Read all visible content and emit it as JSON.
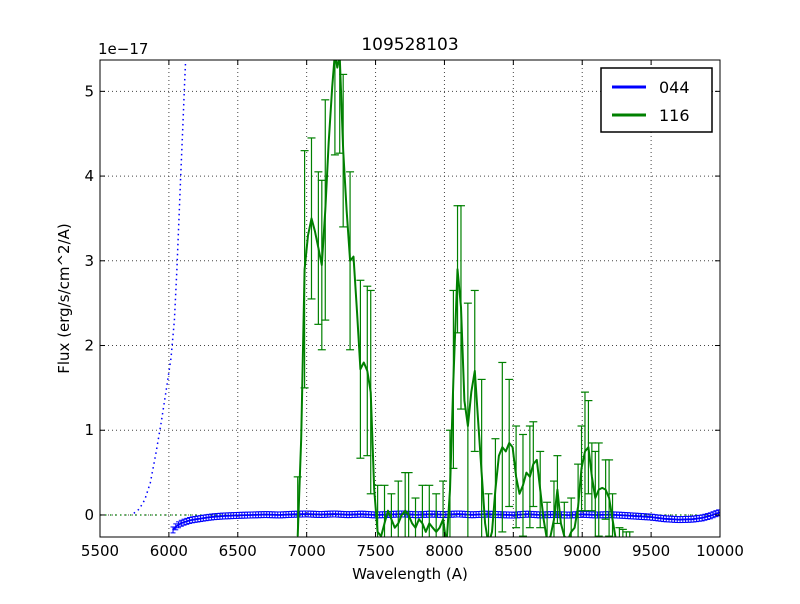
{
  "figure": {
    "title": "109528103",
    "offset_label": "1e−17",
    "xlabel": "Wavelength (A)",
    "ylabel": "Flux (erg/s/cm^2/A)",
    "legend": [
      {
        "label": "044",
        "color": "#0000ff"
      },
      {
        "label": "116",
        "color": "#008000"
      }
    ]
  },
  "chart_data": {
    "type": "line",
    "title": "109528103",
    "xlabel": "Wavelength (A)",
    "ylabel": "Flux (erg/s/cm^2/A)",
    "y_offset_factor": "1e−17",
    "y_unit": "erg/s/cm^2/A",
    "xlim": [
      5500,
      10000
    ],
    "ylim": [
      -0.26,
      5.37
    ],
    "xticks": [
      5500,
      6000,
      6500,
      7000,
      7500,
      8000,
      8500,
      9000,
      9500,
      10000
    ],
    "yticks": [
      0,
      1,
      2,
      3,
      4,
      5
    ],
    "grid": true,
    "grid_style": "dotted",
    "legend_position": "upper right",
    "series": [
      {
        "name": "zero-level-dotted",
        "legend": null,
        "color": "#008000",
        "style": "dotted",
        "width": 1.2,
        "points": [
          [
            5500,
            0
          ],
          [
            10000,
            0
          ]
        ]
      },
      {
        "name": "044-noise-dotted",
        "legend": null,
        "color": "#0000ff",
        "style": "dotted",
        "width": 1.5,
        "points": [
          [
            5745,
            0.02
          ],
          [
            5785,
            0.07
          ],
          [
            5825,
            0.18
          ],
          [
            5865,
            0.38
          ],
          [
            5905,
            0.72
          ],
          [
            5945,
            1.1
          ],
          [
            5985,
            1.52
          ],
          [
            6015,
            1.85
          ],
          [
            6040,
            2.3
          ],
          [
            6058,
            2.9
          ],
          [
            6072,
            3.45
          ],
          [
            6086,
            4.0
          ],
          [
            6100,
            4.55
          ],
          [
            6114,
            5.1
          ],
          [
            6128,
            5.6
          ]
        ]
      },
      {
        "name": "044",
        "legend": "044",
        "color": "#0000ff",
        "style": "solid",
        "width": 1.8,
        "errorband": {
          "start": 6030,
          "end": 10000,
          "step": 20,
          "err": 0.035,
          "capw": 5
        },
        "points": [
          [
            6028,
            -0.18
          ],
          [
            6050,
            -0.14
          ],
          [
            6075,
            -0.11
          ],
          [
            6100,
            -0.09
          ],
          [
            6130,
            -0.075
          ],
          [
            6160,
            -0.06
          ],
          [
            6200,
            -0.05
          ],
          [
            6240,
            -0.04
          ],
          [
            6280,
            -0.03
          ],
          [
            6330,
            -0.02
          ],
          [
            6400,
            -0.012
          ],
          [
            6500,
            -0.005
          ],
          [
            6600,
            0.0
          ],
          [
            6700,
            0.005
          ],
          [
            6800,
            0.0
          ],
          [
            6900,
            0.008
          ],
          [
            7000,
            0.012
          ],
          [
            7100,
            0.005
          ],
          [
            7200,
            0.012
          ],
          [
            7300,
            0.003
          ],
          [
            7400,
            0.01
          ],
          [
            7500,
            0.0
          ],
          [
            7600,
            0.006
          ],
          [
            7700,
            0.012
          ],
          [
            7800,
            0.002
          ],
          [
            7900,
            0.01
          ],
          [
            8000,
            0.004
          ],
          [
            8100,
            0.012
          ],
          [
            8200,
            0.002
          ],
          [
            8300,
            0.01
          ],
          [
            8400,
            0.004
          ],
          [
            8500,
            -0.002
          ],
          [
            8600,
            0.01
          ],
          [
            8700,
            0.0
          ],
          [
            8800,
            0.006
          ],
          [
            8900,
            -0.002
          ],
          [
            9000,
            0.008
          ],
          [
            9100,
            0.0
          ],
          [
            9200,
            0.004
          ],
          [
            9300,
            -0.005
          ],
          [
            9400,
            -0.015
          ],
          [
            9500,
            -0.025
          ],
          [
            9600,
            -0.045
          ],
          [
            9700,
            -0.055
          ],
          [
            9800,
            -0.05
          ],
          [
            9870,
            -0.035
          ],
          [
            9930,
            -0.01
          ],
          [
            9970,
            0.015
          ],
          [
            10000,
            0.03
          ]
        ]
      },
      {
        "name": "116",
        "legend": "116",
        "color": "#008000",
        "style": "solid",
        "width": 2,
        "capw": 8,
        "points": [
          [
            6935,
            -0.25,
            0.7
          ],
          [
            6960,
            0.9,
            0
          ],
          [
            6985,
            2.9,
            1.4
          ],
          [
            7010,
            3.3,
            0
          ],
          [
            7035,
            3.5,
            0.95
          ],
          [
            7060,
            3.35,
            0
          ],
          [
            7085,
            3.15,
            0.9
          ],
          [
            7110,
            2.95,
            1.0
          ],
          [
            7135,
            3.6,
            1.3
          ],
          [
            7160,
            4.4,
            0
          ],
          [
            7185,
            5.05,
            0
          ],
          [
            7205,
            5.45,
            1.2
          ],
          [
            7222,
            5.28,
            0
          ],
          [
            7240,
            5.42,
            1.15
          ],
          [
            7265,
            4.3,
            0.9
          ],
          [
            7290,
            3.6,
            0
          ],
          [
            7315,
            3.0,
            1.05
          ],
          [
            7340,
            3.05,
            0
          ],
          [
            7365,
            2.4,
            0
          ],
          [
            7390,
            1.72,
            1.05
          ],
          [
            7415,
            1.8,
            0
          ],
          [
            7440,
            1.7,
            1.0
          ],
          [
            7465,
            1.45,
            1.2
          ],
          [
            7490,
            0.3,
            0
          ],
          [
            7515,
            -0.2,
            0.55
          ],
          [
            7540,
            -0.25,
            0
          ],
          [
            7565,
            -0.1,
            0.45
          ],
          [
            7590,
            0.05,
            0
          ],
          [
            7615,
            -0.05,
            0.3
          ],
          [
            7640,
            -0.15,
            0
          ],
          [
            7665,
            -0.1,
            0.5
          ],
          [
            7690,
            0.0,
            0
          ],
          [
            7715,
            0.05,
            0.45
          ],
          [
            7740,
            0.0,
            0.5
          ],
          [
            7765,
            -0.1,
            0
          ],
          [
            7790,
            -0.15,
            0.35
          ],
          [
            7815,
            -0.05,
            0
          ],
          [
            7840,
            -0.1,
            0.45
          ],
          [
            7865,
            -0.2,
            0
          ],
          [
            7890,
            -0.1,
            0.45
          ],
          [
            7915,
            -0.15,
            0
          ],
          [
            7940,
            -0.2,
            0.45
          ],
          [
            7965,
            -0.15,
            0
          ],
          [
            7990,
            -0.05,
            0.45
          ],
          [
            8015,
            -0.35,
            0
          ],
          [
            8040,
            0.3,
            0.7
          ],
          [
            8065,
            1.6,
            1.05
          ],
          [
            8095,
            2.9,
            0.75
          ],
          [
            8120,
            2.45,
            1.2
          ],
          [
            8145,
            1.35,
            0
          ],
          [
            8170,
            1.05,
            1.45
          ],
          [
            8195,
            1.45,
            0
          ],
          [
            8220,
            1.7,
            0.95
          ],
          [
            8245,
            1.1,
            0
          ],
          [
            8270,
            0.5,
            1.1
          ],
          [
            8295,
            -0.1,
            0
          ],
          [
            8320,
            -0.35,
            0.6
          ],
          [
            8345,
            -0.2,
            0
          ],
          [
            8370,
            0.3,
            0.6
          ],
          [
            8395,
            0.7,
            0
          ],
          [
            8420,
            0.8,
            1.0
          ],
          [
            8445,
            0.75,
            0
          ],
          [
            8470,
            0.85,
            0.75
          ],
          [
            8495,
            0.8,
            0
          ],
          [
            8520,
            0.45,
            0.6
          ],
          [
            8545,
            0.25,
            0
          ],
          [
            8570,
            0.35,
            0.6
          ],
          [
            8595,
            0.5,
            0
          ],
          [
            8620,
            0.45,
            0.6
          ],
          [
            8645,
            0.6,
            0.5
          ],
          [
            8670,
            0.65,
            0
          ],
          [
            8695,
            0.3,
            0.45
          ],
          [
            8720,
            -0.05,
            0
          ],
          [
            8745,
            -0.3,
            0.45
          ],
          [
            8770,
            -0.25,
            0
          ],
          [
            8795,
            -0.05,
            0.45
          ],
          [
            8820,
            0.3,
            0.4
          ],
          [
            8845,
            -0.1,
            0
          ],
          [
            8870,
            -0.25,
            0.4
          ],
          [
            8895,
            -0.3,
            0
          ],
          [
            8920,
            -0.2,
            0.4
          ],
          [
            8945,
            -0.15,
            0
          ],
          [
            8970,
            0.1,
            0.5
          ],
          [
            8995,
            0.55,
            0.5
          ],
          [
            9020,
            0.75,
            0.7
          ],
          [
            9045,
            0.8,
            0.55
          ],
          [
            9070,
            0.45,
            0.4
          ],
          [
            9095,
            0.2,
            0.55
          ],
          [
            9120,
            0.3,
            0.55
          ],
          [
            9145,
            0.32,
            0
          ],
          [
            9170,
            0.3,
            0.35
          ],
          [
            9195,
            0.2,
            0.45
          ],
          [
            9220,
            -0.05,
            0.3
          ],
          [
            9245,
            -0.3,
            0
          ],
          [
            9270,
            -0.45,
            0.3
          ],
          [
            9295,
            -0.4,
            0.23
          ],
          [
            9320,
            -0.5,
            0.3
          ],
          [
            9345,
            -0.45,
            0.25
          ]
        ]
      }
    ]
  }
}
